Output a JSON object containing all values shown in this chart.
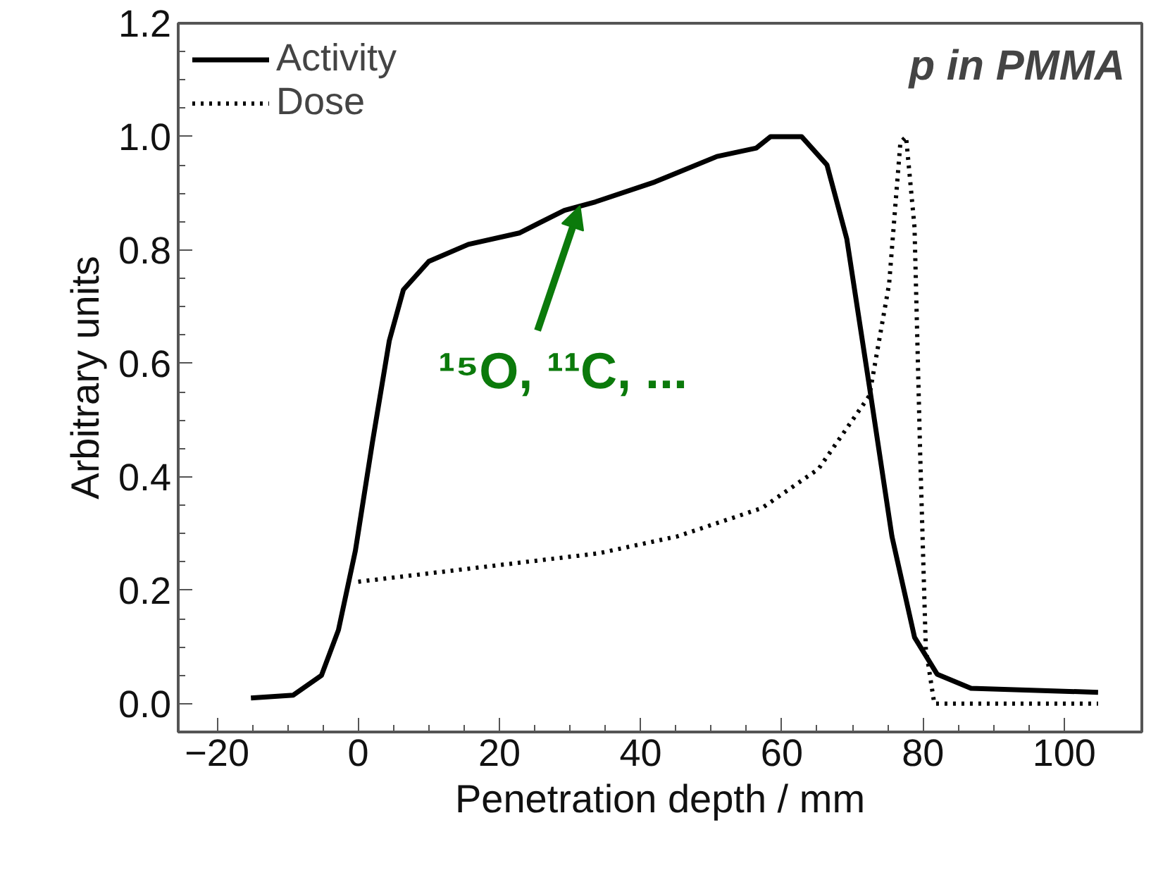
{
  "chart_data": {
    "type": "line",
    "xlabel": "Penetration depth / mm",
    "ylabel": "Arbitrary units",
    "xlim": [
      -25.5,
      111
    ],
    "ylim": [
      -0.05,
      1.2
    ],
    "xticks": [
      -20,
      0,
      20,
      40,
      60,
      80,
      100
    ],
    "yticks": [
      {
        "value": 0,
        "label": "0.0"
      },
      0.2,
      0.4,
      0.6,
      0.8,
      {
        "value": 1,
        "label": "1.0"
      },
      1.2
    ],
    "grid": false,
    "legend": "top left",
    "annotations": [
      "p in PMMA",
      {
        "text": "¹⁵O, ¹¹C,  ...",
        "x": 31.4,
        "y": 0.878
      }
    ],
    "series": [
      {
        "name": "Activity",
        "color": "#000000",
        "line_style": "solid",
        "x": [
          -15.2,
          -9.2,
          -5.2,
          -2.8,
          -0.4,
          2,
          4.4,
          6.4,
          10,
          15.6,
          22.8,
          29.2,
          33.6,
          42,
          50.8,
          56.4,
          58.4,
          62.8,
          66.4,
          69.2,
          72.4,
          75.6,
          78.8,
          82,
          86.8,
          104.8
        ],
        "values": [
          0.01,
          0.015,
          0.05,
          0.13,
          0.27,
          0.46,
          0.64,
          0.73,
          0.78,
          0.81,
          0.83,
          0.87,
          0.885,
          0.92,
          0.965,
          0.98,
          1.0,
          1.0,
          0.95,
          0.82,
          0.56,
          0.295,
          0.117,
          0.052,
          0.027,
          0.02
        ]
      },
      {
        "name": "Dose",
        "color": "#000000",
        "line_style": "dotted",
        "x": [
          0,
          34,
          45.2,
          57.2,
          65.2,
          72.4,
          75.2,
          76.8,
          77.6,
          78.8,
          79.6,
          80.4,
          81.6,
          104.8
        ],
        "values": [
          0.215,
          0.265,
          0.295,
          0.345,
          0.414,
          0.543,
          0.74,
          0.99,
          1.0,
          0.84,
          0.44,
          0.097,
          0.0,
          0.0
        ]
      }
    ]
  }
}
